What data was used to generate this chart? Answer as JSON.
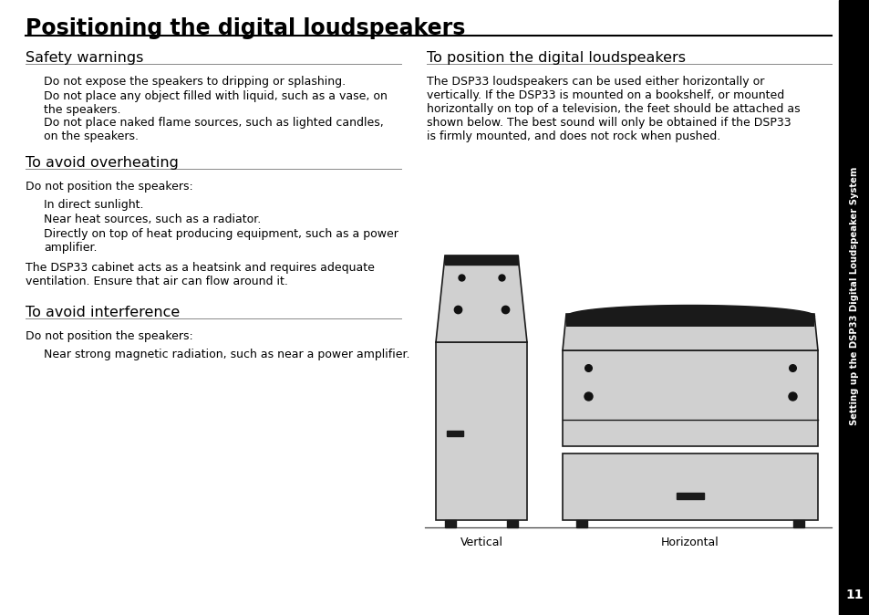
{
  "title": "Positioning the digital loudspeakers",
  "page_bg": "#ffffff",
  "sidebar_text": "Setting up the DSP33 Digital Loudspeaker System",
  "sidebar_page_num": "11",
  "left_column": {
    "sections": [
      {
        "heading": "Safety warnings",
        "body": [
          "Do not expose the speakers to dripping or splashing.",
          "Do not place any object filled with liquid, such as a vase, on\nthe speakers.",
          "Do not place naked flame sources, such as lighted candles,\non the speakers."
        ],
        "indent": true
      },
      {
        "heading": "To avoid overheating",
        "intro": "Do not position the speakers:",
        "body": [
          "In direct sunlight.",
          "Near heat sources, such as a radiator.",
          "Directly on top of heat producing equipment, such as a power\namplifier."
        ],
        "indent": true,
        "extra": "The DSP33 cabinet acts as a heatsink and requires adequate\nventilation. Ensure that air can flow around it."
      },
      {
        "heading": "To avoid interference",
        "intro": "Do not position the speakers:",
        "body": [
          "Near strong magnetic radiation, such as near a power amplifier."
        ],
        "indent": true
      }
    ]
  },
  "right_column": {
    "heading": "To position the digital loudspeakers",
    "body": "The DSP33 loudspeakers can be used either horizontally or\nvertically. If the DSP33 is mounted on a bookshelf, or mounted\nhorizontally on top of a television, the feet should be attached as\nshown below. The best sound will only be obtained if the DSP33\nis firmly mounted, and does not rock when pushed.",
    "caption_vertical": "Vertical",
    "caption_horizontal": "Horizontal"
  },
  "spk_gray": "#d0d0d0",
  "spk_dark": "#1a1a1a",
  "dot_color": "#111111"
}
